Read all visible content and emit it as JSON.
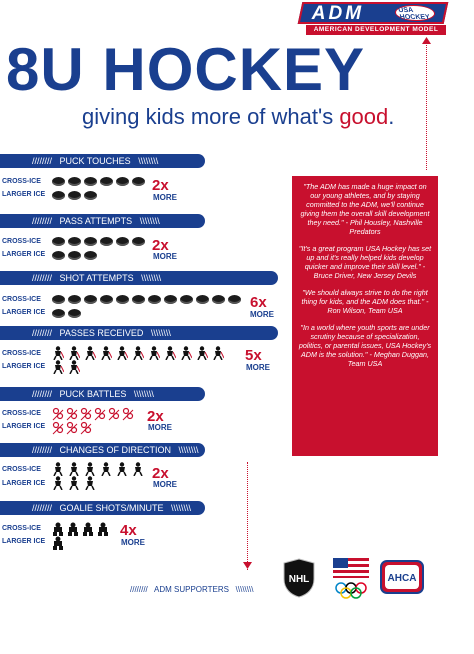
{
  "logo": {
    "main": "ADM",
    "badge": "USA HOCKEY",
    "sub": "AMERICAN DEVELOPMENT MODEL"
  },
  "title": "8U HOCKEY",
  "subtitle": {
    "main": "giving kids more of what's ",
    "highlight": "good",
    "end": "."
  },
  "labels": {
    "cross": "CROSS-ICE",
    "larger": "LARGER ICE",
    "more": "MORE"
  },
  "sections": [
    {
      "title": "PUCK TOUCHES",
      "multiplier": "2x"
    },
    {
      "title": "PASS ATTEMPTS",
      "multiplier": "2x"
    },
    {
      "title": "SHOT ATTEMPTS",
      "multiplier": "6x"
    },
    {
      "title": "PASSES RECEIVED",
      "multiplier": "5x"
    },
    {
      "title": "PUCK BATTLES",
      "multiplier": "2x"
    },
    {
      "title": "CHANGES OF DIRECTION",
      "multiplier": "2x"
    },
    {
      "title": "GOALIE SHOTS/MINUTE",
      "multiplier": "4x"
    }
  ],
  "quotes": [
    {
      "text": "\"The ADM has made a huge impact on our young athletes, and by staying committed to the ADM, we'll continue giving them the overall skill development they need.\"",
      "author": " - Phil Housley, Nashville Predators"
    },
    {
      "text": "\"It's a great program USA Hockey has set up and it's really helped kids develop quicker and improve their skill level.\"",
      "author": " - Bruce Driver, New Jersey Devils"
    },
    {
      "text": "\"We should always strive to do the right thing for kids, and the ADM does that.\"",
      "author": " - Ron Wilson, Team USA"
    },
    {
      "text": "\"In a world where youth sports are under scrutiny because of specialization, politics, or parental issues, USA Hockey's ADM is the solution.\"",
      "author": " - Meghan Duggan, Team USA"
    }
  ],
  "supporters": {
    "label": "ADM SUPPORTERS",
    "logos": [
      "NHL",
      "USA Olympic",
      "AHCA"
    ]
  },
  "colors": {
    "blue": "#1a3f8f",
    "red": "#c8102e"
  }
}
